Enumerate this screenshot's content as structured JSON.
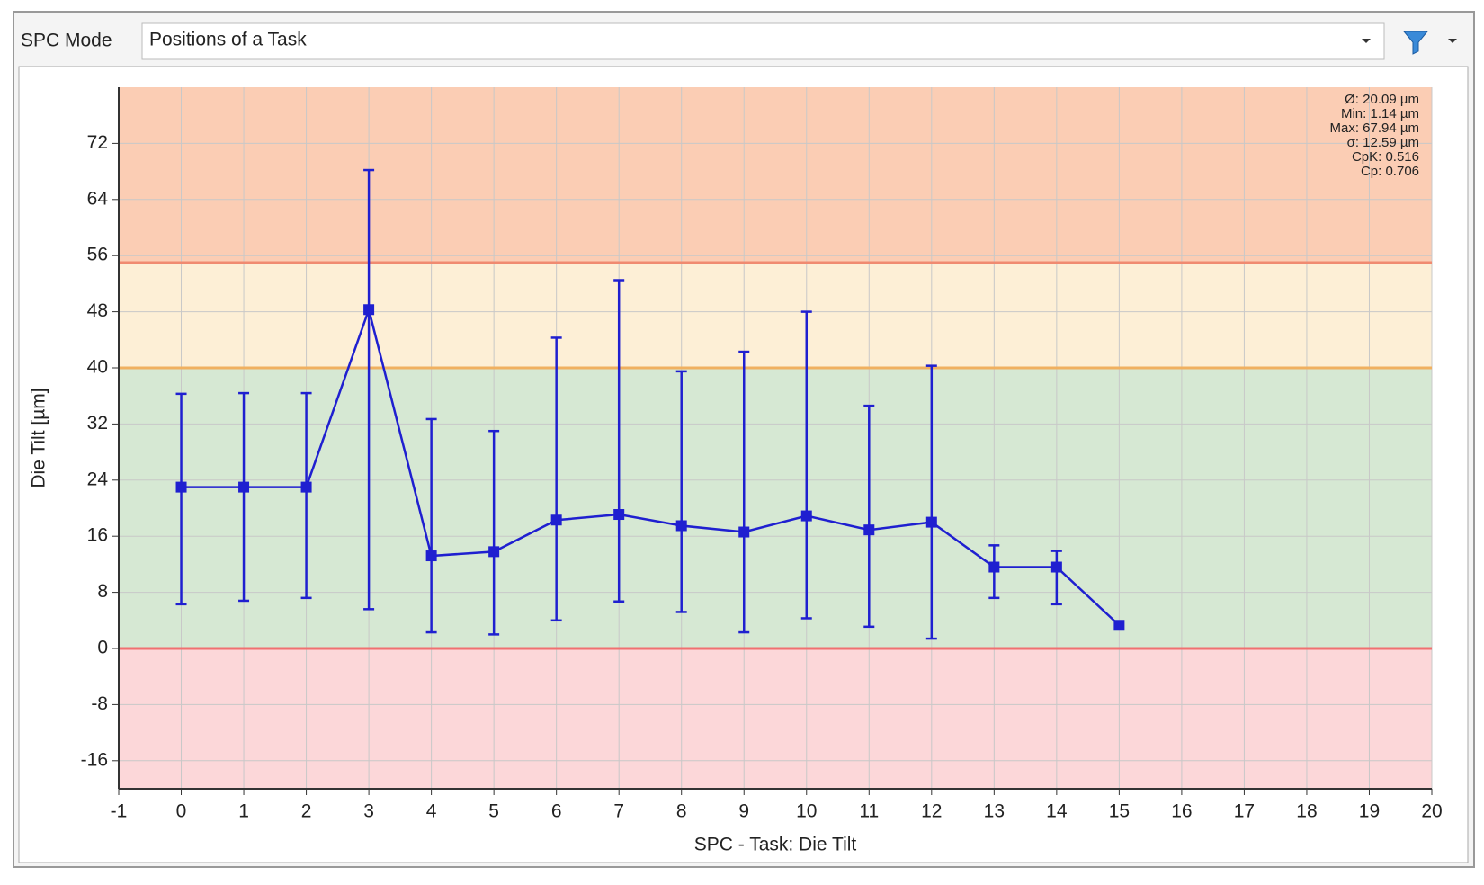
{
  "toolbar": {
    "label": "SPC Mode",
    "selection": "Positions of a Task"
  },
  "chart_data": {
    "type": "errorbar-line",
    "xlabel": "SPC - Task: Die Tilt",
    "ylabel": "Die Tilt [µm]",
    "stats": [
      "Ø: 20.09 µm",
      "Min: 1.14 µm",
      "Max: 67.94 µm",
      "σ: 12.59 µm",
      "CpK: 0.516",
      "Cp: 0.706"
    ],
    "xlim": [
      -1,
      20
    ],
    "xticks": [
      -1,
      0,
      1,
      2,
      3,
      4,
      5,
      6,
      7,
      8,
      9,
      10,
      11,
      12,
      13,
      14,
      15,
      16,
      17,
      18,
      19,
      20
    ],
    "ylim": [
      -20,
      80
    ],
    "yticks": [
      -16,
      -8,
      0,
      8,
      16,
      24,
      32,
      40,
      48,
      56,
      64,
      72
    ],
    "grid": true,
    "bands": [
      {
        "from": 55,
        "to": 80,
        "color": "#fbcdb4"
      },
      {
        "from": 40,
        "to": 55,
        "color": "#fdefd6"
      },
      {
        "from": 0,
        "to": 40,
        "color": "#d6e8d3"
      },
      {
        "from": -20,
        "to": 0,
        "color": "#fcd7d9"
      }
    ],
    "limits": [
      {
        "value": 55,
        "color": "#f08a70"
      },
      {
        "value": 40,
        "color": "#f0b060"
      },
      {
        "value": 0,
        "color": "#f07070"
      }
    ],
    "series": [
      {
        "color": "#1f1fd0",
        "x": [
          0,
          1,
          2,
          3,
          4,
          5,
          6,
          7,
          8,
          9,
          10,
          11,
          12,
          13,
          14,
          15
        ],
        "values": [
          23,
          23,
          23,
          48.3,
          13.2,
          13.8,
          18.3,
          19.1,
          17.5,
          16.6,
          18.9,
          16.9,
          18,
          11.6,
          11.6,
          3.3
        ],
        "low": [
          6.3,
          6.8,
          7.2,
          5.6,
          2.3,
          2,
          4,
          6.7,
          5.2,
          2.3,
          4.3,
          3.1,
          1.4,
          7.2,
          6.3,
          null
        ],
        "high": [
          36.3,
          36.4,
          36.4,
          68.2,
          32.7,
          31,
          44.3,
          52.5,
          39.5,
          42.3,
          48,
          34.6,
          40.3,
          14.7,
          13.9,
          null
        ]
      }
    ]
  }
}
